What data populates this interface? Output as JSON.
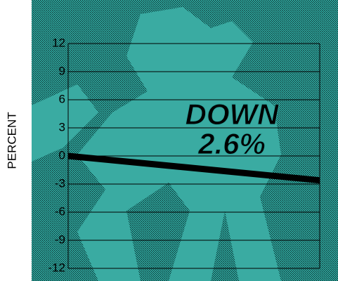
{
  "chart_data": {
    "type": "line",
    "y_label": "PERCENT",
    "annotation": [
      "DOWN",
      "2.6%"
    ],
    "categories": [
      null,
      null
    ],
    "values": [
      0,
      -2.6
    ],
    "color": "#000000",
    "ylim": [
      -12,
      12
    ],
    "yticks": [
      -12,
      -9,
      -6,
      -3,
      0,
      3,
      6,
      9,
      12
    ],
    "grid": true
  }
}
